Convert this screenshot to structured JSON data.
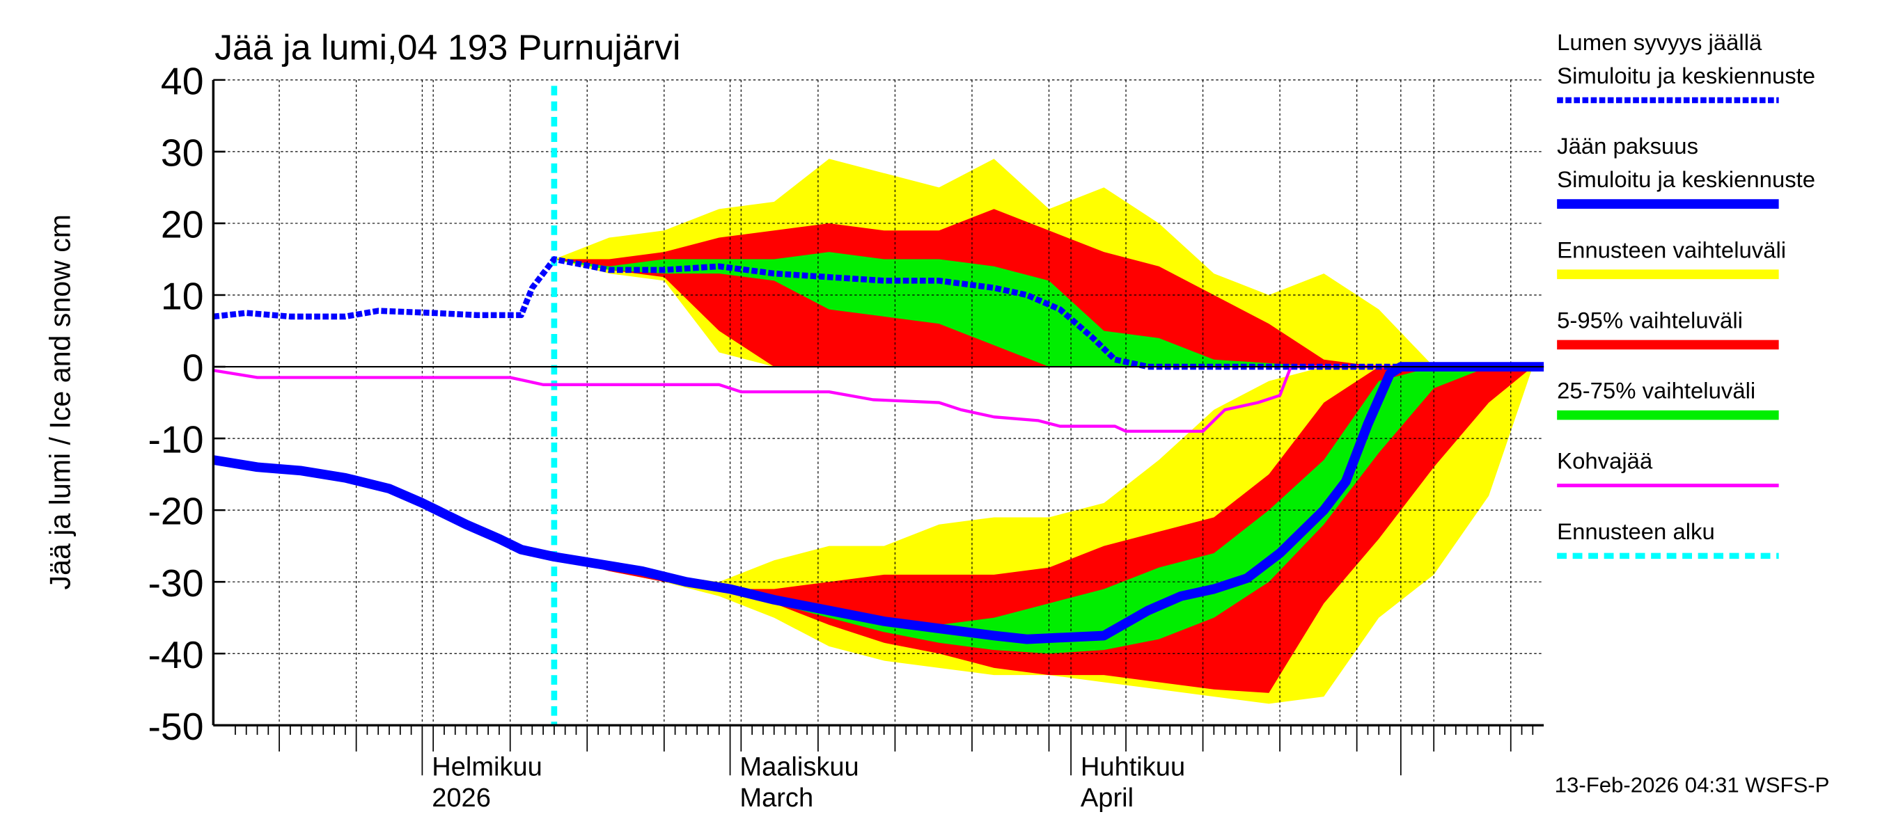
{
  "chart_data": {
    "type": "area",
    "title": "Jää ja lumi,04 193 Purnujärvi",
    "ylabel": "Jää ja lumi / Ice and snow    cm",
    "ylim": [
      -50,
      40
    ],
    "yticks": [
      40,
      30,
      20,
      10,
      0,
      -10,
      -20,
      -30,
      -40,
      -50
    ],
    "xlim": [
      "2026-01-13",
      "2026-05-14"
    ],
    "grid": true,
    "legend_placement": "right",
    "month_labels": [
      {
        "date": "2026-02-01",
        "line1": "Helmikuu",
        "line2": "2026"
      },
      {
        "date": "2026-03-01",
        "line1": "Maaliskuu",
        "line2": "March"
      },
      {
        "date": "2026-04-01",
        "line1": "Huhtikuu",
        "line2": "April"
      }
    ],
    "forecast_start": "2026-02-13",
    "forecast_dates": [
      "2026-02-13",
      "2026-02-18",
      "2026-02-23",
      "2026-02-28",
      "2026-03-05",
      "2026-03-10",
      "2026-03-15",
      "2026-03-20",
      "2026-03-25",
      "2026-03-30",
      "2026-04-04",
      "2026-04-09",
      "2026-04-14",
      "2026-04-19",
      "2026-04-24",
      "2026-04-29",
      "2026-05-04",
      "2026-05-09",
      "2026-05-13"
    ],
    "bands": {
      "snow_yellow": {
        "upper": [
          15,
          18,
          19,
          22,
          23,
          29,
          27,
          25,
          29,
          22,
          25,
          20,
          13,
          10,
          13,
          8,
          0,
          0,
          0
        ],
        "lower": [
          15,
          13,
          12,
          2,
          0,
          0,
          0,
          0,
          0,
          0,
          0,
          0,
          0,
          0,
          0,
          0,
          0,
          0,
          0
        ]
      },
      "snow_red": {
        "upper": [
          15,
          15,
          16,
          18,
          19,
          20,
          19,
          19,
          22,
          19,
          16,
          14,
          10,
          6,
          1,
          0,
          0,
          0,
          0
        ],
        "lower": [
          15,
          13.5,
          12.5,
          5,
          0,
          0,
          0,
          0,
          0,
          0,
          0,
          0,
          0,
          0,
          0,
          0,
          0,
          0,
          0
        ]
      },
      "snow_green": {
        "upper": [
          15,
          14,
          15,
          15,
          15,
          16,
          15,
          15,
          14,
          12,
          5,
          4,
          1,
          0.5,
          0,
          0,
          0,
          0,
          0
        ],
        "lower": [
          15,
          13.5,
          13,
          13,
          12,
          8,
          7,
          6,
          3,
          0,
          0,
          0,
          0,
          0,
          0,
          0,
          0,
          0,
          0
        ]
      },
      "ice_yellow": {
        "upper": [
          -26.5,
          -28,
          -29,
          -30,
          -27,
          -25,
          -25,
          -22,
          -21,
          -21,
          -19,
          -13,
          -6,
          -2,
          0,
          0,
          0,
          0,
          0
        ],
        "lower": [
          -26.5,
          -28.5,
          -30,
          -32,
          -35,
          -39,
          -41,
          -42,
          -43,
          -43,
          -44,
          -45,
          -46,
          -47,
          -46,
          -35,
          -29,
          -18,
          0
        ]
      },
      "ice_red": {
        "upper": [
          -26.5,
          -28,
          -29.5,
          -31,
          -31,
          -30,
          -29,
          -29,
          -29,
          -28,
          -25,
          -23,
          -21,
          -15,
          -5,
          0,
          0,
          0,
          0
        ],
        "lower": [
          -26.5,
          -28.5,
          -30,
          -31,
          -33,
          -36,
          -38.5,
          -40,
          -42,
          -43,
          -43,
          -44,
          -45,
          -45.5,
          -33,
          -24,
          -14,
          -5,
          0
        ]
      },
      "ice_green": {
        "upper": [
          -26.5,
          -28,
          -29.5,
          -31,
          -32.5,
          -34,
          -35,
          -36,
          -35,
          -33,
          -31,
          -28,
          -26,
          -20,
          -13,
          -2,
          0,
          0,
          0
        ],
        "lower": [
          -26.5,
          -28,
          -29.5,
          -31,
          -33,
          -35,
          -37,
          -38.5,
          -39.5,
          -40,
          -39.5,
          -38,
          -35,
          -30,
          -22,
          -12,
          -3,
          0,
          0
        ]
      }
    },
    "series": [
      {
        "name": "Lumen syvyys jäällä – Simuloitu ja keskiennuste",
        "color": "#0000ff",
        "style": "dashed",
        "points": [
          [
            "2026-01-13",
            7
          ],
          [
            "2026-01-16",
            7.5
          ],
          [
            "2026-01-20",
            7
          ],
          [
            "2026-01-25",
            7
          ],
          [
            "2026-01-28",
            7.8
          ],
          [
            "2026-02-02",
            7.5
          ],
          [
            "2026-02-06",
            7.2
          ],
          [
            "2026-02-10",
            7.2
          ],
          [
            "2026-02-11",
            11
          ],
          [
            "2026-02-13",
            15
          ],
          [
            "2026-02-18",
            13.5
          ],
          [
            "2026-02-23",
            13.5
          ],
          [
            "2026-02-28",
            14
          ],
          [
            "2026-03-05",
            13
          ],
          [
            "2026-03-10",
            12.5
          ],
          [
            "2026-03-15",
            12
          ],
          [
            "2026-03-20",
            12
          ],
          [
            "2026-03-25",
            11
          ],
          [
            "2026-03-28",
            10
          ],
          [
            "2026-03-31",
            8
          ],
          [
            "2026-04-03",
            4
          ],
          [
            "2026-04-05",
            1
          ],
          [
            "2026-04-08",
            0
          ],
          [
            "2026-05-14",
            0
          ]
        ]
      },
      {
        "name": "Jään paksuus – Simuloitu ja keskiennuste",
        "color": "#0000ff",
        "style": "solid",
        "points": [
          [
            "2026-01-13",
            -13
          ],
          [
            "2026-01-17",
            -14
          ],
          [
            "2026-01-21",
            -14.5
          ],
          [
            "2026-01-25",
            -15.5
          ],
          [
            "2026-01-29",
            -17
          ],
          [
            "2026-02-01",
            -19
          ],
          [
            "2026-02-05",
            -22
          ],
          [
            "2026-02-08",
            -24
          ],
          [
            "2026-02-10",
            -25.5
          ],
          [
            "2026-02-13",
            -26.5
          ],
          [
            "2026-02-17",
            -27.5
          ],
          [
            "2026-02-21",
            -28.5
          ],
          [
            "2026-02-25",
            -30
          ],
          [
            "2026-03-01",
            -31
          ],
          [
            "2026-03-05",
            -32.5
          ],
          [
            "2026-03-10",
            -34
          ],
          [
            "2026-03-15",
            -35.5
          ],
          [
            "2026-03-20",
            -36.5
          ],
          [
            "2026-03-25",
            -37.5
          ],
          [
            "2026-03-28",
            -38
          ],
          [
            "2026-04-04",
            -37.5
          ],
          [
            "2026-04-08",
            -34
          ],
          [
            "2026-04-11",
            -32
          ],
          [
            "2026-04-14",
            -31
          ],
          [
            "2026-04-17",
            -29.5
          ],
          [
            "2026-04-20",
            -26
          ],
          [
            "2026-04-24",
            -20
          ],
          [
            "2026-04-26",
            -16
          ],
          [
            "2026-04-28",
            -8
          ],
          [
            "2026-04-30",
            -1
          ],
          [
            "2026-05-01",
            0
          ],
          [
            "2026-05-14",
            0
          ]
        ]
      },
      {
        "name": "Kohvajää",
        "color": "#ff00ff",
        "style": "solid",
        "points": [
          [
            "2026-01-13",
            -0.5
          ],
          [
            "2026-01-17",
            -1.5
          ],
          [
            "2026-02-09",
            -1.5
          ],
          [
            "2026-02-12",
            -2.5
          ],
          [
            "2026-02-28",
            -2.5
          ],
          [
            "2026-03-02",
            -3.5
          ],
          [
            "2026-03-10",
            -3.5
          ],
          [
            "2026-03-14",
            -4.6
          ],
          [
            "2026-03-20",
            -5
          ],
          [
            "2026-03-22",
            -6
          ],
          [
            "2026-03-25",
            -7
          ],
          [
            "2026-03-29",
            -7.5
          ],
          [
            "2026-03-31",
            -8.3
          ],
          [
            "2026-04-05",
            -8.3
          ],
          [
            "2026-04-06",
            -9
          ],
          [
            "2026-04-13",
            -9
          ],
          [
            "2026-04-15",
            -6
          ],
          [
            "2026-04-18",
            -5
          ],
          [
            "2026-04-20",
            -4
          ],
          [
            "2026-04-21",
            0
          ],
          [
            "2026-05-14",
            0
          ]
        ]
      }
    ],
    "legend": [
      {
        "label1": "Lumen syvyys jäällä",
        "label2": "Simuloitu ja keskiennuste",
        "color": "#0000ff",
        "style": "dashed"
      },
      {
        "label1": "Jään paksuus",
        "label2": "Simuloitu ja keskiennuste",
        "color": "#0000ff",
        "style": "thick"
      },
      {
        "label1": "Ennusteen vaihteluväli",
        "color": "#ffff00",
        "style": "thick"
      },
      {
        "label1": "5-95% vaihteluväli",
        "color": "#ff0000",
        "style": "thick"
      },
      {
        "label1": "25-75% vaihteluväli",
        "color": "#00ee00",
        "style": "thick"
      },
      {
        "label1": "Kohvajää",
        "color": "#ff00ff",
        "style": "solid"
      },
      {
        "label1": "Ennusteen alku",
        "color": "#00ffff",
        "style": "dashed"
      }
    ],
    "colors": {
      "yellow": "#ffff00",
      "red": "#ff0000",
      "green": "#00ee00",
      "forecast_line": "#00ffff"
    },
    "footer": "13-Feb-2026 04:31 WSFS-P"
  }
}
